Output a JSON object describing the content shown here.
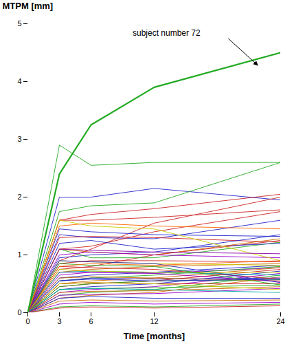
{
  "chart_data": {
    "type": "line",
    "xlabel": "Time [months]",
    "ylabel": "MTPM [mm]",
    "x": [
      0,
      3,
      6,
      12,
      24
    ],
    "xlim": [
      0,
      24
    ],
    "ylim": [
      0,
      5
    ],
    "xticks": [
      0,
      3,
      6,
      12,
      24
    ],
    "yticks": [
      0,
      1,
      2,
      3,
      4,
      5
    ],
    "grid": false,
    "series": [
      {
        "color": "#2222cc",
        "values": [
          0,
          2.0,
          2.0,
          2.15,
          1.95
        ]
      },
      {
        "color": "#cc2222",
        "values": [
          0,
          1.6,
          1.7,
          1.8,
          2.05
        ]
      },
      {
        "color": "#cc2222",
        "values": [
          0,
          0.9,
          1.1,
          1.55,
          2.0
        ]
      },
      {
        "color": "#22aa22",
        "values": [
          0,
          1.75,
          1.85,
          1.9,
          2.6
        ]
      },
      {
        "color": "#22aa22",
        "values": [
          0,
          2.9,
          2.55,
          2.6,
          2.6
        ]
      },
      {
        "color": "#cc2222",
        "values": [
          0,
          1.6,
          1.6,
          1.65,
          1.78
        ]
      },
      {
        "color": "#2222cc",
        "values": [
          0,
          1.35,
          1.3,
          1.28,
          1.6
        ]
      },
      {
        "color": "#cc2222",
        "values": [
          0,
          1.1,
          1.15,
          1.4,
          1.75
        ]
      },
      {
        "color": "#cc2222",
        "values": [
          0,
          1.3,
          1.32,
          1.3,
          1.22
        ]
      },
      {
        "color": "#2222cc",
        "values": [
          0,
          0.95,
          1.0,
          1.05,
          1.35
        ]
      },
      {
        "color": "#cc2222",
        "values": [
          0,
          0.75,
          0.8,
          1.0,
          1.25
        ]
      },
      {
        "color": "#22aa22",
        "values": [
          0,
          1.1,
          0.95,
          0.95,
          1.22
        ]
      },
      {
        "color": "#2222cc",
        "values": [
          0,
          1.2,
          1.25,
          1.1,
          1.2
        ]
      },
      {
        "color": "#2222cc",
        "values": [
          0,
          1.45,
          1.4,
          1.35,
          1.32
        ]
      },
      {
        "color": "#cc6600",
        "values": [
          0,
          1.1,
          1.05,
          1.0,
          1.28
        ]
      },
      {
        "color": "#9900cc",
        "values": [
          0,
          1.0,
          1.05,
          1.0,
          0.95
        ]
      },
      {
        "color": "#2222cc",
        "values": [
          0,
          0.6,
          0.65,
          0.7,
          0.82
        ]
      },
      {
        "color": "#cc6600",
        "values": [
          0,
          0.7,
          0.75,
          0.8,
          0.85
        ]
      },
      {
        "color": "#9900cc",
        "values": [
          0,
          0.65,
          0.7,
          0.68,
          0.78
        ]
      },
      {
        "color": "#cccc00",
        "values": [
          0,
          1.6,
          1.5,
          1.45,
          0.9
        ]
      },
      {
        "color": "#cccc00",
        "values": [
          0,
          0.9,
          0.88,
          0.85,
          0.82
        ]
      },
      {
        "color": "#cc2222",
        "values": [
          0,
          0.85,
          0.9,
          0.9,
          0.88
        ]
      },
      {
        "color": "#22aa22",
        "values": [
          0,
          0.55,
          0.6,
          0.65,
          0.8
        ]
      },
      {
        "color": "#cc6600",
        "values": [
          0,
          0.5,
          0.55,
          0.6,
          0.78
        ]
      },
      {
        "color": "#cc2222",
        "values": [
          0,
          0.45,
          0.5,
          0.55,
          0.75
        ]
      },
      {
        "color": "#2222cc",
        "values": [
          0,
          0.4,
          0.45,
          0.5,
          0.72
        ]
      },
      {
        "color": "#9900cc",
        "values": [
          0,
          0.35,
          0.4,
          0.45,
          0.68
        ]
      },
      {
        "color": "#22aa22",
        "values": [
          0,
          0.3,
          0.35,
          0.4,
          0.65
        ]
      },
      {
        "color": "#cc6600",
        "values": [
          0,
          0.25,
          0.3,
          0.35,
          0.62
        ]
      },
      {
        "color": "#2222cc",
        "values": [
          0,
          0.55,
          0.6,
          0.58,
          0.6
        ]
      },
      {
        "color": "#cc2222",
        "values": [
          0,
          0.8,
          0.78,
          0.75,
          0.58
        ]
      },
      {
        "color": "#22aa22",
        "values": [
          0,
          0.45,
          0.5,
          0.55,
          0.57
        ]
      },
      {
        "color": "#cc6600",
        "values": [
          0,
          0.6,
          0.62,
          0.6,
          0.55
        ]
      },
      {
        "color": "#9900cc",
        "values": [
          0,
          0.7,
          0.7,
          0.68,
          0.54
        ]
      },
      {
        "color": "#2222cc",
        "values": [
          0,
          0.9,
          0.88,
          0.85,
          0.52
        ]
      },
      {
        "color": "#cc2222",
        "values": [
          0,
          0.5,
          0.52,
          0.5,
          0.5
        ]
      },
      {
        "color": "#22aa22",
        "values": [
          0,
          0.4,
          0.42,
          0.43,
          0.48
        ]
      },
      {
        "color": "#cc6600",
        "values": [
          0,
          0.35,
          0.37,
          0.38,
          0.45
        ]
      },
      {
        "color": "#9900cc",
        "values": [
          0,
          0.3,
          0.32,
          0.33,
          0.42
        ]
      },
      {
        "color": "#cccc00",
        "values": [
          0,
          0.5,
          0.52,
          0.5,
          0.4
        ]
      },
      {
        "color": "#00aaaa",
        "values": [
          0,
          0.7,
          0.72,
          0.7,
          0.65
        ]
      },
      {
        "color": "#00aaaa",
        "values": [
          0,
          0.4,
          0.42,
          0.4,
          0.35
        ]
      },
      {
        "color": "#2222cc",
        "values": [
          0,
          0.25,
          0.28,
          0.25,
          0.25
        ]
      },
      {
        "color": "#cc6600",
        "values": [
          0,
          0.2,
          0.22,
          0.2,
          0.22
        ]
      },
      {
        "color": "#9900cc",
        "values": [
          0,
          0.15,
          0.18,
          0.15,
          0.18
        ]
      },
      {
        "color": "#22aa22",
        "values": [
          0,
          0.1,
          0.12,
          0.1,
          0.15
        ]
      },
      {
        "color": "#cc2222",
        "values": [
          0,
          0.08,
          0.1,
          0.08,
          0.12
        ]
      },
      {
        "color": "#cccc00",
        "values": [
          0,
          0.75,
          0.72,
          0.7,
          0.7
        ]
      },
      {
        "color": "#22aa22",
        "values": [
          0,
          0.85,
          0.82,
          0.8,
          0.48
        ]
      },
      {
        "color": "#2222cc",
        "values": [
          0,
          0.55,
          0.58,
          0.55,
          0.58
        ]
      },
      {
        "color": "#ff6600",
        "values": [
          0,
          1.5,
          1.55,
          1.5,
          1.45
        ]
      },
      {
        "color": "#ff6600",
        "values": [
          0,
          0.8,
          0.85,
          0.82,
          0.9
        ]
      },
      {
        "color": "#8800aa",
        "values": [
          0,
          1.1,
          1.08,
          1.05,
          1.02
        ]
      },
      {
        "color": "#22aa22",
        "values": [
          0,
          2.4,
          3.25,
          3.9,
          4.5
        ]
      }
    ],
    "annotations": [
      {
        "text": "subject number 72",
        "x": 22,
        "y": 4.25
      }
    ]
  }
}
